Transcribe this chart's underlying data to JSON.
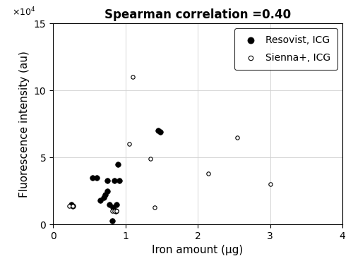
{
  "title": "Spearman correlation =0.40",
  "xlabel": "Iron amount (μg)",
  "ylabel": "Fluorescence intensity (au)",
  "xlim": [
    0,
    4
  ],
  "ylim": [
    0,
    150000
  ],
  "yticks": [
    0,
    50000,
    100000,
    150000
  ],
  "ytick_labels": [
    "0",
    "5",
    "10",
    "15"
  ],
  "xticks": [
    0,
    1,
    2,
    3,
    4
  ],
  "resovist_x": [
    0.25,
    0.27,
    0.55,
    0.6,
    0.65,
    0.7,
    0.72,
    0.75,
    0.75,
    0.78,
    0.82,
    0.83,
    0.85,
    0.87,
    0.88,
    0.9,
    0.92,
    1.45,
    1.48
  ],
  "resovist_y": [
    15000,
    14000,
    35000,
    35000,
    18000,
    20000,
    22000,
    25000,
    33000,
    15000,
    3000,
    13000,
    33000,
    10000,
    15000,
    45000,
    33000,
    70000,
    69000
  ],
  "sienna_x": [
    0.22,
    0.27,
    0.82,
    0.85,
    0.88,
    1.05,
    1.1,
    1.35,
    1.4,
    2.15,
    2.55,
    3.0
  ],
  "sienna_y": [
    14000,
    14000,
    10000,
    10000,
    10000,
    60000,
    110000,
    49000,
    13000,
    38000,
    65000,
    30000
  ],
  "legend_labels": [
    "Resovist, ICG",
    "Sienna+, ICG"
  ],
  "marker_size_filled": 30,
  "marker_size_open": 15,
  "grid": true,
  "background_color": "#ffffff",
  "title_fontsize": 12,
  "axis_label_fontsize": 11,
  "tick_fontsize": 10,
  "legend_fontsize": 10
}
